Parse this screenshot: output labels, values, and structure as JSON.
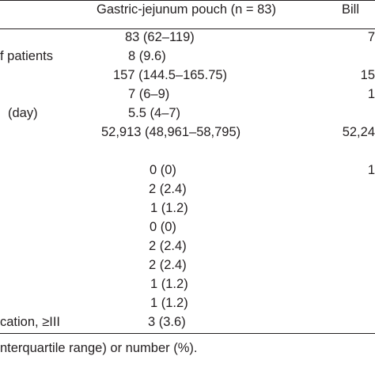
{
  "header": {
    "columns": [
      "Gastric-jejunum pouch (n = 83)",
      "Bill"
    ]
  },
  "table": {
    "rows": [
      [
        null,
        "83 (62–119)",
        "7"
      ],
      [
        "f patients",
        "8 (9.6)",
        null
      ],
      [
        null,
        "157 (144.5–165.75)",
        "15"
      ],
      [
        null,
        "7 (6–9)",
        "1"
      ],
      [
        "(day)",
        "5.5 (4–7)",
        null
      ],
      [
        null,
        "52,913 (48,961–58,795)",
        "52,24"
      ],
      [
        null,
        null,
        null
      ],
      [
        null,
        "0 (0)",
        "1"
      ],
      [
        null,
        "2 (2.4)",
        null
      ],
      [
        null,
        "1 (1.2)",
        null
      ],
      [
        null,
        "0 (0)",
        null
      ],
      [
        null,
        "2 (2.4)",
        null
      ],
      [
        null,
        "2 (2.4)",
        null
      ],
      [
        null,
        "1 (1.2)",
        null
      ],
      [
        null,
        "1 (1.2)",
        null
      ],
      [
        "cation, ≥III",
        "3 (3.6)",
        null
      ]
    ]
  },
  "footnote": "nterquartile range) or number (%)."
}
